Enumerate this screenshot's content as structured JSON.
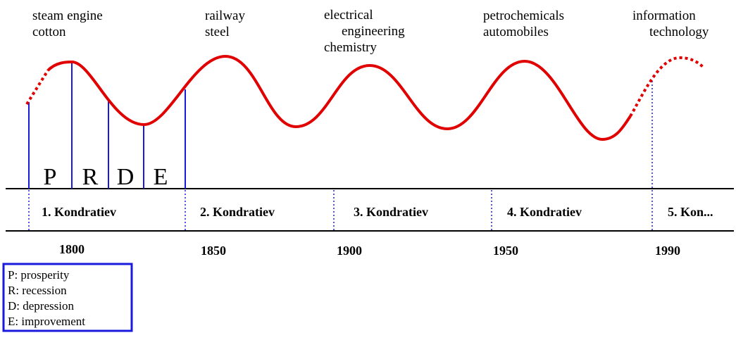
{
  "innovations": [
    {
      "lines": [
        "steam engine",
        "cotton"
      ]
    },
    {
      "lines": [
        "railway",
        "steel"
      ]
    },
    {
      "lines": [
        "electrical",
        "engineering",
        "chemistry"
      ]
    },
    {
      "lines": [
        "petrochemicals",
        "automobiles"
      ]
    },
    {
      "lines": [
        "information",
        "technology"
      ]
    }
  ],
  "phases": [
    "P",
    "R",
    "D",
    "E"
  ],
  "waves": [
    "1. Kondratiev",
    "2. Kondratiev",
    "3. Kondratiev",
    "4. Kondratiev",
    "5. Kon..."
  ],
  "years": [
    "1800",
    "1850",
    "1900",
    "1950",
    "1990"
  ],
  "legend": [
    "P: prosperity",
    "R: recession",
    "D: depression",
    "E: improvement"
  ]
}
